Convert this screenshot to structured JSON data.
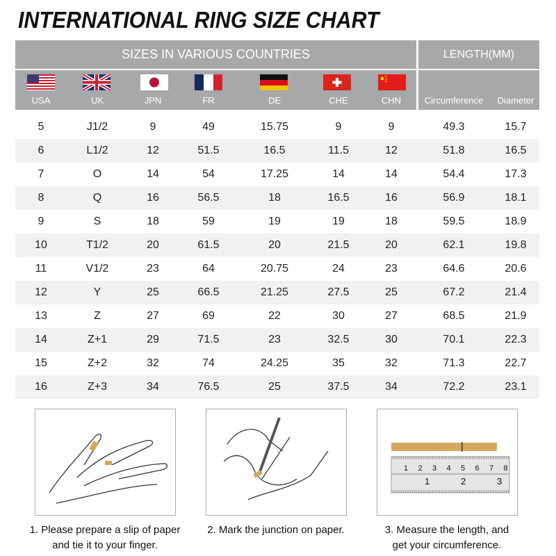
{
  "title": "INTERNATIONAL RING SIZE CHART",
  "header": {
    "sizes": "SIZES IN VARIOUS COUNTRIES",
    "length": "LENGTH(MM)",
    "countries": [
      {
        "label": "USA",
        "flag": "usa-flag"
      },
      {
        "label": "UK",
        "flag": "uk-flag"
      },
      {
        "label": "JPN",
        "flag": "japan-flag"
      },
      {
        "label": "FR",
        "flag": "france-flag"
      },
      {
        "label": "DE",
        "flag": "germany-flag"
      },
      {
        "label": "CHE",
        "flag": "switzerland-flag"
      },
      {
        "label": "CHN",
        "flag": "china-flag"
      }
    ],
    "circumference": "Circumference",
    "diameter": "Diameter"
  },
  "rows": [
    [
      "5",
      "J1/2",
      "9",
      "49",
      "15.75",
      "9",
      "9",
      "49.3",
      "15.7"
    ],
    [
      "6",
      "L1/2",
      "12",
      "51.5",
      "16.5",
      "11.5",
      "12",
      "51.8",
      "16.5"
    ],
    [
      "7",
      "O",
      "14",
      "54",
      "17.25",
      "14",
      "14",
      "54.4",
      "17.3"
    ],
    [
      "8",
      "Q",
      "16",
      "56.5",
      "18",
      "16.5",
      "16",
      "56.9",
      "18.1"
    ],
    [
      "9",
      "S",
      "18",
      "59",
      "19",
      "19",
      "18",
      "59.5",
      "18.9"
    ],
    [
      "10",
      "T1/2",
      "20",
      "61.5",
      "20",
      "21.5",
      "20",
      "62.1",
      "19.8"
    ],
    [
      "11",
      "V1/2",
      "23",
      "64",
      "20.75",
      "24",
      "23",
      "64.6",
      "20.6"
    ],
    [
      "12",
      "Y",
      "25",
      "66.5",
      "21.25",
      "27.5",
      "25",
      "67.2",
      "21.4"
    ],
    [
      "13",
      "Z",
      "27",
      "69",
      "22",
      "30",
      "27",
      "68.5",
      "21.9"
    ],
    [
      "14",
      "Z+1",
      "29",
      "71.5",
      "23",
      "32.5",
      "30",
      "70.1",
      "22.3"
    ],
    [
      "15",
      "Z+2",
      "32",
      "74",
      "24.25",
      "35",
      "32",
      "71.3",
      "22.7"
    ],
    [
      "16",
      "Z+3",
      "34",
      "76.5",
      "25",
      "37.5",
      "34",
      "72.2",
      "23.1"
    ]
  ],
  "steps": [
    {
      "line1": "1. Please prepare a slip of paper",
      "line2": "and tie it to your finger.",
      "image": "hand-with-paper-strip"
    },
    {
      "line1": "2. Mark the junction on paper.",
      "line2": "",
      "image": "marking-paper-with-pen"
    },
    {
      "line1": "3. Measure the length, and",
      "line2": "get your circumference.",
      "image": "paper-strip-and-ruler"
    }
  ],
  "ruler": {
    "top_marks": [
      "1",
      "2",
      "3",
      "4",
      "5",
      "6",
      "7",
      "8"
    ],
    "bottom_marks": [
      "1",
      "2",
      "3"
    ]
  },
  "colors": {
    "header_bg": "#a7a8aa",
    "row_alt": "#f1f1f1",
    "paper": "#d3a85c"
  }
}
